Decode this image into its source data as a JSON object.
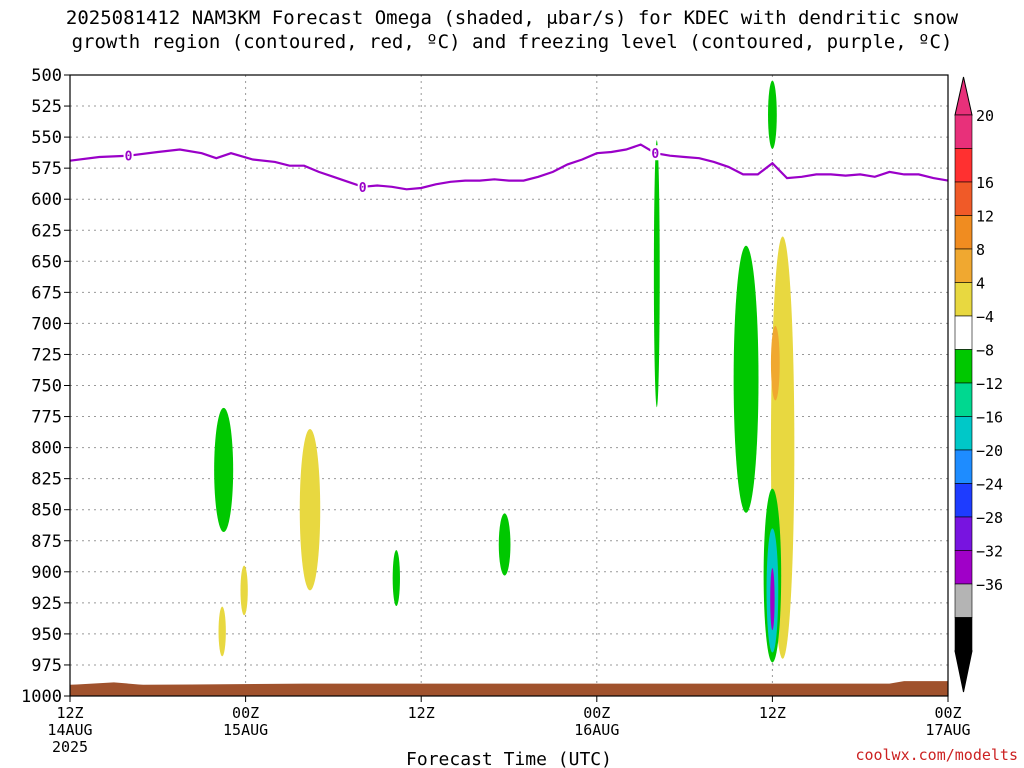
{
  "title_line1": "2025081412 NAM3KM Forecast Omega (shaded, μbar/s) for KDEC with dendritic snow",
  "title_line2": "growth region (contoured, red, ºC) and freezing level (contoured, purple, ºC)",
  "credit": "coolwx.com/modelts",
  "chart_data": {
    "type": "contour",
    "xlabel": "Forecast Time (UTC)",
    "x_ticks": [
      {
        "hour": 0,
        "label": [
          "12Z",
          "14AUG",
          "2025"
        ]
      },
      {
        "hour": 12,
        "label": [
          "00Z",
          "15AUG"
        ]
      },
      {
        "hour": 24,
        "label": [
          "12Z"
        ]
      },
      {
        "hour": 36,
        "label": [
          "00Z",
          "16AUG"
        ]
      },
      {
        "hour": 48,
        "label": [
          "12Z"
        ]
      },
      {
        "hour": 60,
        "label": [
          "00Z",
          "17AUG"
        ]
      }
    ],
    "x_range_hours": [
      0,
      60
    ],
    "y_ticks": [
      500,
      525,
      550,
      575,
      600,
      625,
      650,
      675,
      700,
      725,
      750,
      775,
      800,
      825,
      850,
      875,
      900,
      925,
      950,
      975,
      1000
    ],
    "y_range_hPa": [
      500,
      1000
    ],
    "colorbar": {
      "labels": [
        "20",
        "16",
        "12",
        "8",
        "4",
        "−4",
        "−8",
        "−12",
        "−16",
        "−20",
        "−24",
        "−28",
        "−32",
        "−36"
      ],
      "colors": [
        "#e8307a",
        "#ff3030",
        "#f05a28",
        "#f08c20",
        "#f0a830",
        "#e8d840",
        "#ffffff",
        "#00c800",
        "#00d890",
        "#00c8c8",
        "#1e8cff",
        "#1e3cff",
        "#7814e0",
        "#a000c8",
        "#b4b4b4",
        "#000000"
      ],
      "top_triangle_color": "#e8307a",
      "bottom_triangle_color": "#000000"
    },
    "freezing_level": {
      "label": "0",
      "color": "#9a00c8",
      "points": [
        [
          0,
          569
        ],
        [
          2,
          566
        ],
        [
          4,
          565
        ],
        [
          6,
          562
        ],
        [
          7.5,
          560
        ],
        [
          9,
          563
        ],
        [
          10,
          567
        ],
        [
          11,
          563
        ],
        [
          12.5,
          568
        ],
        [
          14,
          570
        ],
        [
          15,
          573
        ],
        [
          16,
          573
        ],
        [
          17,
          578
        ],
        [
          18,
          582
        ],
        [
          19,
          586
        ],
        [
          20,
          590
        ],
        [
          21,
          589
        ],
        [
          22,
          590
        ],
        [
          23,
          592
        ],
        [
          24,
          591
        ],
        [
          25,
          588
        ],
        [
          26,
          586
        ],
        [
          27,
          585
        ],
        [
          28,
          585
        ],
        [
          29,
          584
        ],
        [
          30,
          585
        ],
        [
          31,
          585
        ],
        [
          32,
          582
        ],
        [
          33,
          578
        ],
        [
          34,
          572
        ],
        [
          35,
          568
        ],
        [
          36,
          563
        ],
        [
          37,
          562
        ],
        [
          38,
          560
        ],
        [
          39,
          556
        ],
        [
          40,
          563
        ],
        [
          41,
          565
        ],
        [
          42,
          566
        ],
        [
          43,
          567
        ],
        [
          44,
          570
        ],
        [
          45,
          574
        ],
        [
          46,
          580
        ],
        [
          47,
          580
        ],
        [
          48,
          571
        ],
        [
          49,
          583
        ],
        [
          50,
          582
        ],
        [
          51,
          580
        ],
        [
          52,
          580
        ],
        [
          53,
          581
        ],
        [
          54,
          580
        ],
        [
          55,
          582
        ],
        [
          56,
          578
        ],
        [
          57,
          580
        ],
        [
          58,
          580
        ],
        [
          59,
          583
        ],
        [
          60,
          585
        ]
      ],
      "label_hours": [
        4,
        20,
        40
      ]
    },
    "omega_regions": [
      {
        "value": -6,
        "color": "#00c800",
        "center": [
          10.5,
          818
        ],
        "span": [
          1.3,
          100
        ]
      },
      {
        "value": 6,
        "color": "#e8d840",
        "center": [
          16.4,
          850
        ],
        "span": [
          1.4,
          130
        ]
      },
      {
        "value": 6,
        "color": "#e8d840",
        "center": [
          11.9,
          915
        ],
        "span": [
          0.5,
          40
        ]
      },
      {
        "value": 6,
        "color": "#e8d840",
        "center": [
          10.4,
          948
        ],
        "span": [
          0.5,
          40
        ]
      },
      {
        "value": -6,
        "color": "#00c800",
        "center": [
          22.3,
          905
        ],
        "span": [
          0.5,
          45
        ]
      },
      {
        "value": -6,
        "color": "#00c800",
        "center": [
          29.7,
          878
        ],
        "span": [
          0.8,
          50
        ]
      },
      {
        "value": -6,
        "color": "#00c800",
        "center": [
          40.1,
          660
        ],
        "span": [
          0.4,
          215
        ]
      },
      {
        "value": -6,
        "color": "#00c800",
        "center": [
          48.0,
          532
        ],
        "span": [
          0.6,
          55
        ]
      },
      {
        "value": -6,
        "color": "#00c800",
        "center": [
          46.2,
          745
        ],
        "span": [
          1.7,
          215
        ]
      },
      {
        "value": 6,
        "color": "#e8d840",
        "center": [
          48.7,
          800
        ],
        "span": [
          1.6,
          340
        ]
      },
      {
        "value": 10,
        "color": "#f0a830",
        "center": [
          48.2,
          732
        ],
        "span": [
          0.6,
          60
        ]
      },
      {
        "value": -6,
        "color": "#00c800",
        "center": [
          48.0,
          903
        ],
        "span": [
          1.2,
          140
        ]
      },
      {
        "value": -14,
        "color": "#00c8c8",
        "center": [
          48.0,
          915
        ],
        "span": [
          0.8,
          100
        ]
      },
      {
        "value": -30,
        "color": "#a000c8",
        "center": [
          48.0,
          922
        ],
        "span": [
          0.3,
          50
        ]
      }
    ],
    "terrain_color": "#a0522d"
  }
}
